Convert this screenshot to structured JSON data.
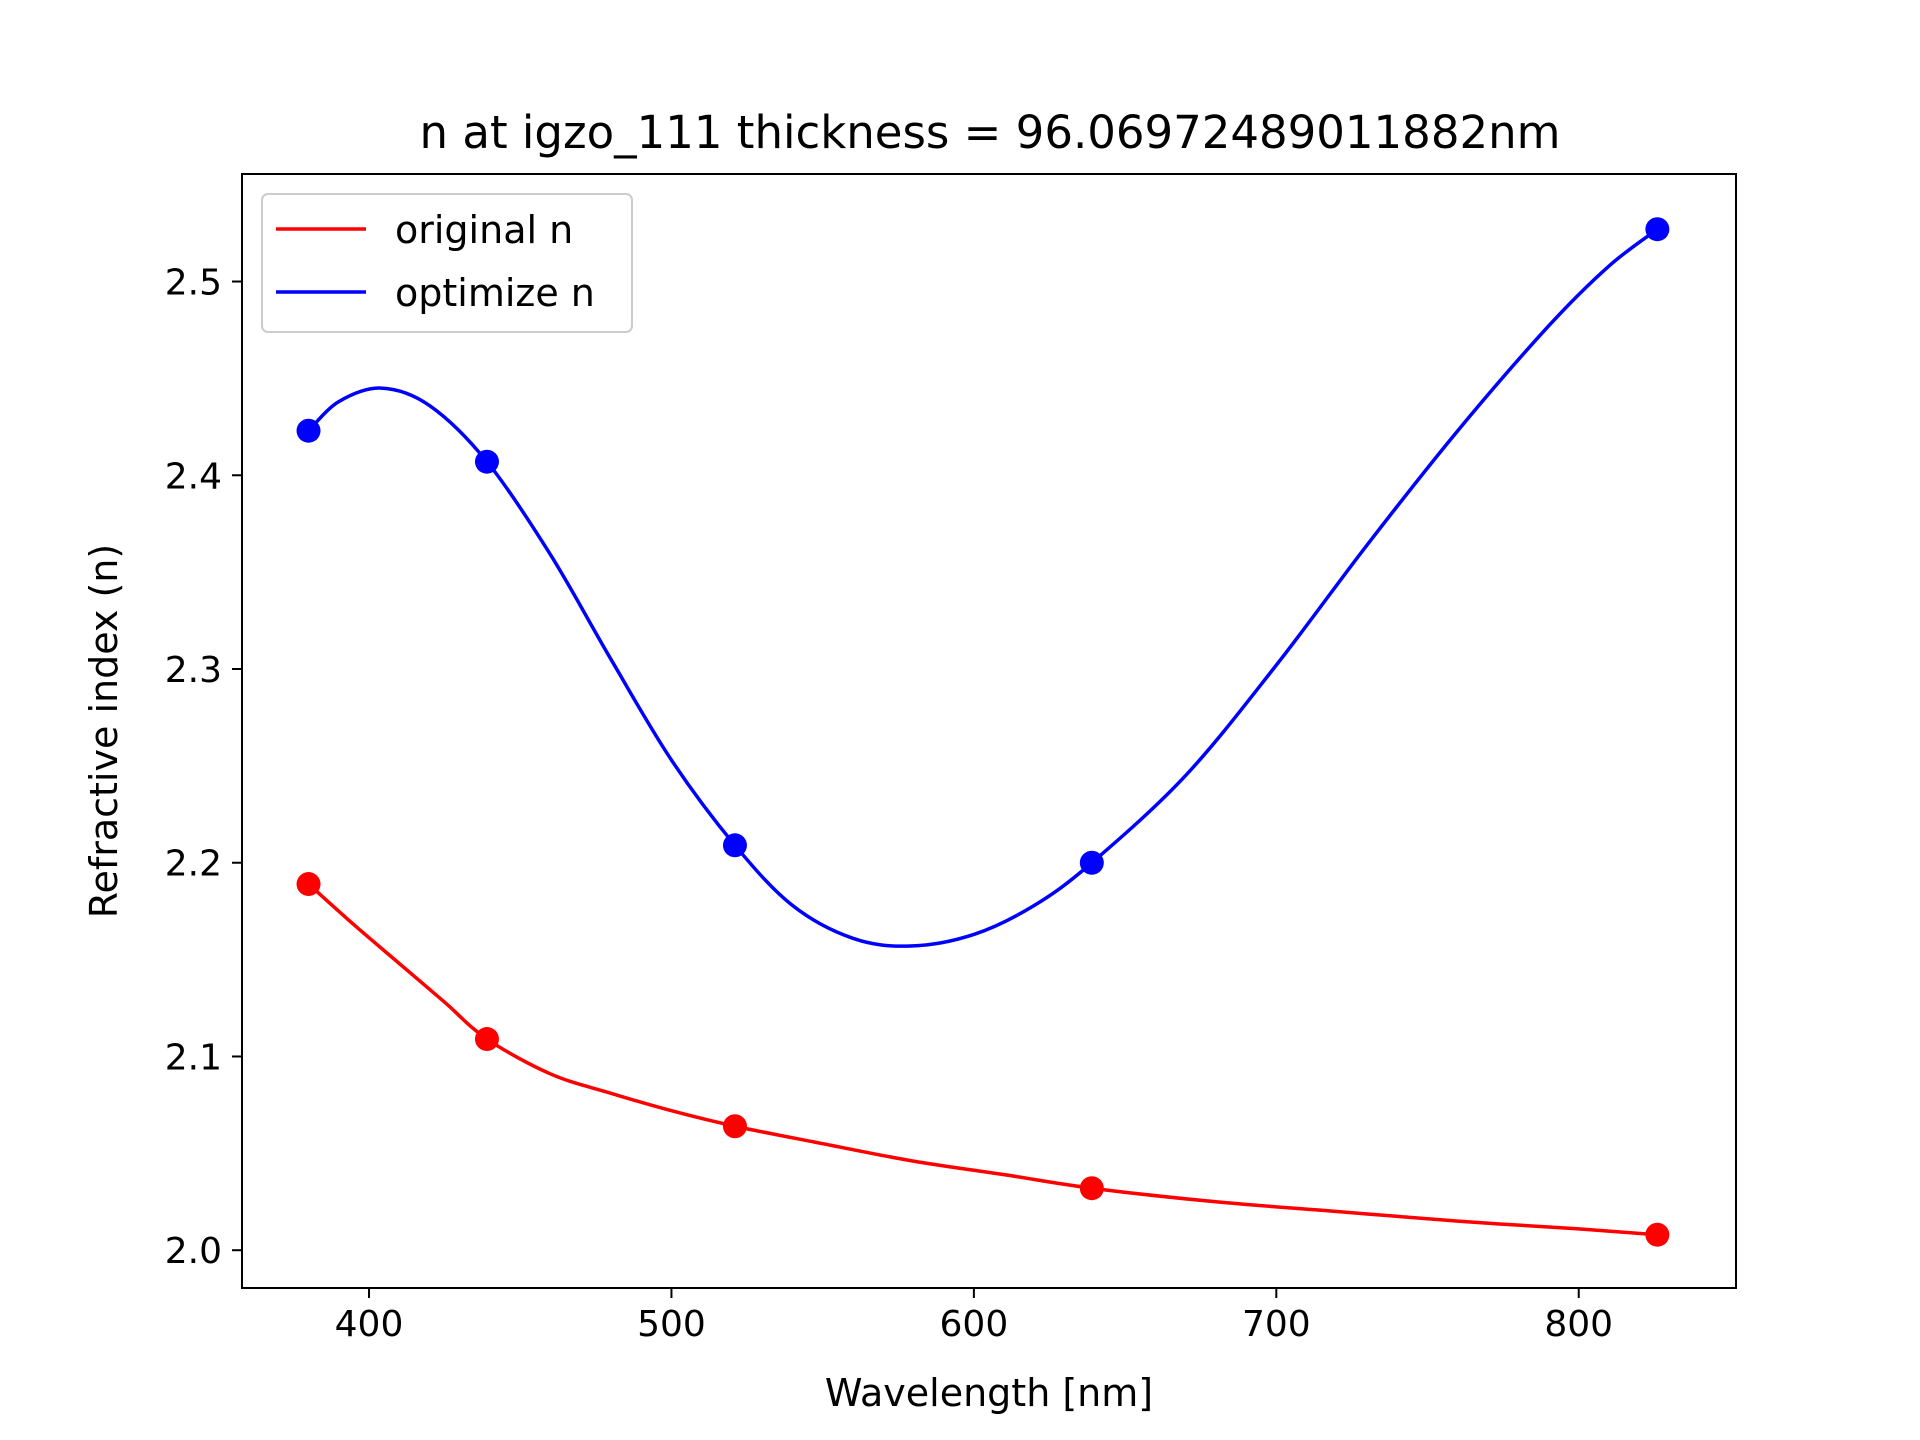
{
  "chart_data": {
    "type": "line",
    "title": "n at igzo_111 thickness = 96.06972489011882nm",
    "xlabel": "Wavelength [nm]",
    "ylabel": "Refractive index (n)",
    "xlim": [
      358,
      852
    ],
    "ylim": [
      1.9805,
      2.5555
    ],
    "xticks": [
      400,
      500,
      600,
      700,
      800
    ],
    "xtick_labels": [
      "400",
      "500",
      "600",
      "700",
      "800"
    ],
    "yticks": [
      2.0,
      2.1,
      2.2,
      2.3,
      2.4,
      2.5
    ],
    "ytick_labels": [
      "2.0",
      "2.1",
      "2.2",
      "2.3",
      "2.4",
      "2.5"
    ],
    "grid": false,
    "legend_position": "upper-left",
    "series": [
      {
        "name": "original n",
        "color": "#ff0000",
        "points": {
          "x": [
            380,
            439,
            521,
            639,
            826
          ],
          "y": [
            2.189,
            2.109,
            2.064,
            2.032,
            2.008
          ]
        },
        "curve": {
          "x": [
            380,
            395,
            410,
            425,
            439,
            460,
            480,
            500,
            521,
            550,
            580,
            610,
            639,
            680,
            720,
            760,
            800,
            826
          ],
          "y": [
            2.189,
            2.168,
            2.148,
            2.128,
            2.109,
            2.091,
            2.081,
            2.072,
            2.064,
            2.055,
            2.046,
            2.039,
            2.032,
            2.025,
            2.02,
            2.015,
            2.011,
            2.008
          ]
        }
      },
      {
        "name": "optimize n",
        "color": "#0000ff",
        "points": {
          "x": [
            380,
            439,
            521,
            639,
            826
          ],
          "y": [
            2.423,
            2.407,
            2.209,
            2.2,
            2.527
          ]
        },
        "curve": {
          "x": [
            380,
            390,
            404,
            420,
            439,
            460,
            480,
            500,
            521,
            540,
            560,
            579,
            600,
            620,
            639,
            670,
            700,
            730,
            760,
            790,
            810,
            826
          ],
          "y": [
            2.423,
            2.438,
            2.445,
            2.436,
            2.407,
            2.359,
            2.305,
            2.253,
            2.209,
            2.178,
            2.161,
            2.157,
            2.163,
            2.178,
            2.2,
            2.245,
            2.302,
            2.364,
            2.423,
            2.477,
            2.508,
            2.527
          ]
        }
      }
    ]
  }
}
